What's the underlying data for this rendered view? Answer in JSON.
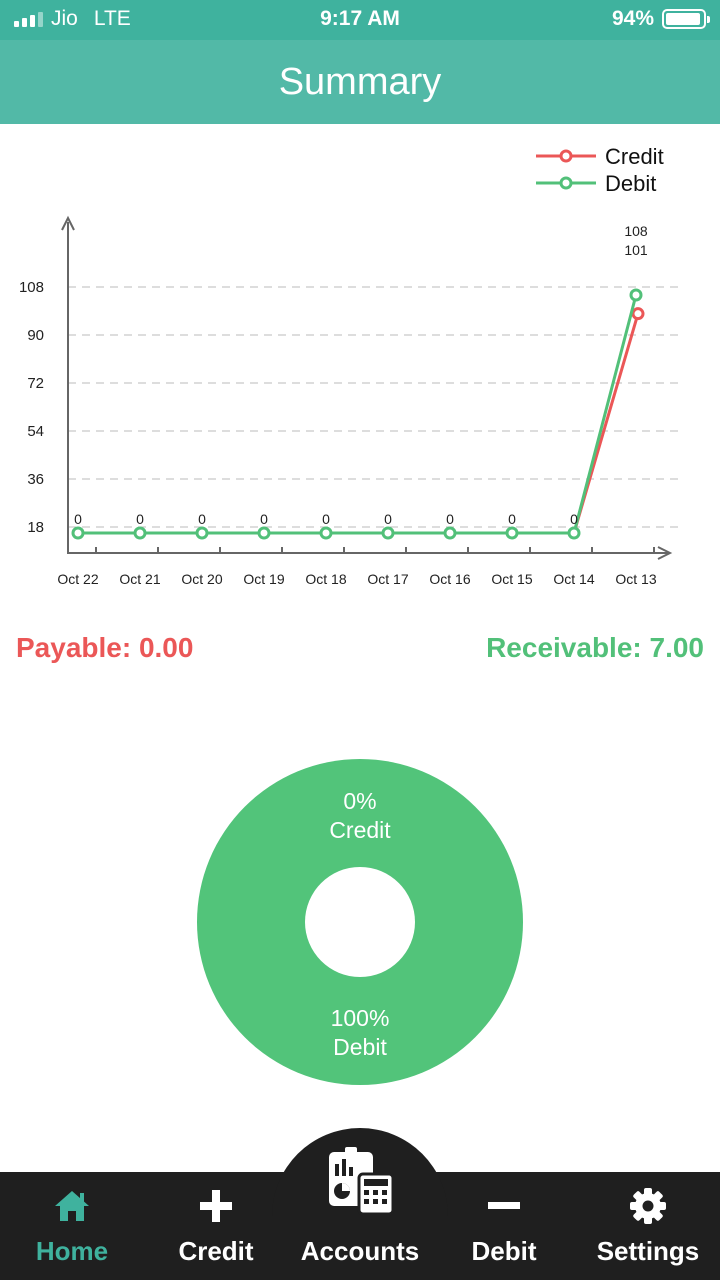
{
  "status_bar": {
    "carrier": "Jio",
    "network": "LTE",
    "time": "9:17 AM",
    "battery_label": "94%",
    "battery_level": 0.94
  },
  "header": {
    "title": "Summary"
  },
  "chart_data": {
    "type": "line",
    "categories": [
      "Oct 22",
      "Oct 21",
      "Oct 20",
      "Oct 19",
      "Oct 18",
      "Oct 17",
      "Oct 16",
      "Oct 15",
      "Oct 14",
      "Oct 13"
    ],
    "yticks": [
      "18",
      "36",
      "54",
      "72",
      "90",
      "108"
    ],
    "ylim": [
      18,
      108
    ],
    "grid": true,
    "legend_position": "top-right",
    "series": [
      {
        "name": "Credit",
        "color": "#eb5757",
        "values": [
          0,
          0,
          0,
          0,
          0,
          0,
          0,
          0,
          0,
          101
        ]
      },
      {
        "name": "Debit",
        "color": "#52c079",
        "values": [
          0,
          0,
          0,
          0,
          0,
          0,
          0,
          0,
          0,
          108
        ]
      }
    ],
    "point_labels": [
      "0",
      "0",
      "0",
      "0",
      "0",
      "0",
      "0",
      "0",
      "0",
      "108"
    ],
    "last_point_labels": [
      "108",
      "101"
    ]
  },
  "summary": {
    "payable": "Payable: 0.00",
    "receivable": "Receivable: 7.00"
  },
  "pie": {
    "slices": [
      {
        "percent": "0%",
        "label": "Credit",
        "value": 0,
        "color": "#eb5757"
      },
      {
        "percent": "100%",
        "label": "Debit",
        "value": 100,
        "color": "#52c47a"
      }
    ]
  },
  "nav": {
    "items": [
      {
        "label": "Home",
        "icon": "home-icon",
        "active": true
      },
      {
        "label": "Credit",
        "icon": "plus-icon"
      },
      {
        "label": "Accounts",
        "icon": "accounts-calculator-icon"
      },
      {
        "label": "Debit",
        "icon": "minus-icon"
      },
      {
        "label": "Settings",
        "icon": "gear-icon"
      }
    ],
    "active_color": "#3fb29e"
  }
}
